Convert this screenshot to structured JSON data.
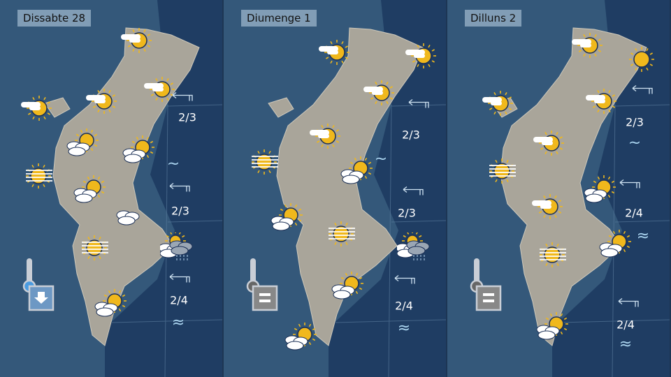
{
  "colors": {
    "land": "#a9a59a",
    "sea": "#1f3d63",
    "inland": "#34587a",
    "sun": "#f0b81c",
    "title_bg": "#aac3d7"
  },
  "panels": [
    {
      "title": "Dissabte 28",
      "temperature_trend": "down-arrow-icon",
      "icons": [
        "sun-cloud",
        "sun-cloud",
        "sun-cloud",
        "sun-cloud",
        "partly-cloudy",
        "partly-cloudy",
        "fog-sun",
        "partly-cloudy",
        "cloudy",
        "fog-sun",
        "sun-cloud-rain",
        "partly-cloudy"
      ],
      "sea": [
        {
          "wind": "wind-arrow-west",
          "waves": "2/3",
          "state": ""
        },
        {
          "wind": "",
          "waves": "",
          "state": "~"
        },
        {
          "wind": "wind-arrow-west",
          "waves": "2/3",
          "state": ""
        },
        {
          "wind": "wind-arrow-west",
          "waves": "2/4",
          "state": "≈"
        }
      ]
    },
    {
      "title": "Diumenge 1",
      "temperature_trend": "equal-icon",
      "icons": [
        "sun-cloud",
        "sun-cloud",
        "sun-cloud",
        "sun-cloud",
        "fog-sun",
        "partly-cloudy",
        "partly-cloudy",
        "fog-sun",
        "sun-cloud-rain",
        "partly-cloudy",
        "partly-cloudy"
      ],
      "sea": [
        {
          "wind": "wind-arrow-west",
          "waves": "2/3",
          "state": "~"
        },
        {
          "wind": "wind-arrow-west",
          "waves": "2/3",
          "state": ""
        },
        {
          "wind": "wind-arrow-west",
          "waves": "2/4",
          "state": "≈"
        }
      ]
    },
    {
      "title": "Dilluns 2",
      "temperature_trend": "equal-icon",
      "icons": [
        "sun-cloud",
        "sun",
        "sun-cloud",
        "sun-cloud",
        "sun-cloud",
        "fog-sun",
        "partly-cloudy",
        "sun-cloud",
        "partly-cloudy",
        "fog-sun",
        "partly-cloudy"
      ],
      "sea": [
        {
          "wind": "wind-arrow-west",
          "waves": "2/3",
          "state": "~"
        },
        {
          "wind": "wind-arrow-west",
          "waves": "2/4",
          "state": "≈"
        },
        {
          "wind": "wind-arrow-west",
          "waves": "2/4",
          "state": "≈"
        }
      ]
    }
  ]
}
